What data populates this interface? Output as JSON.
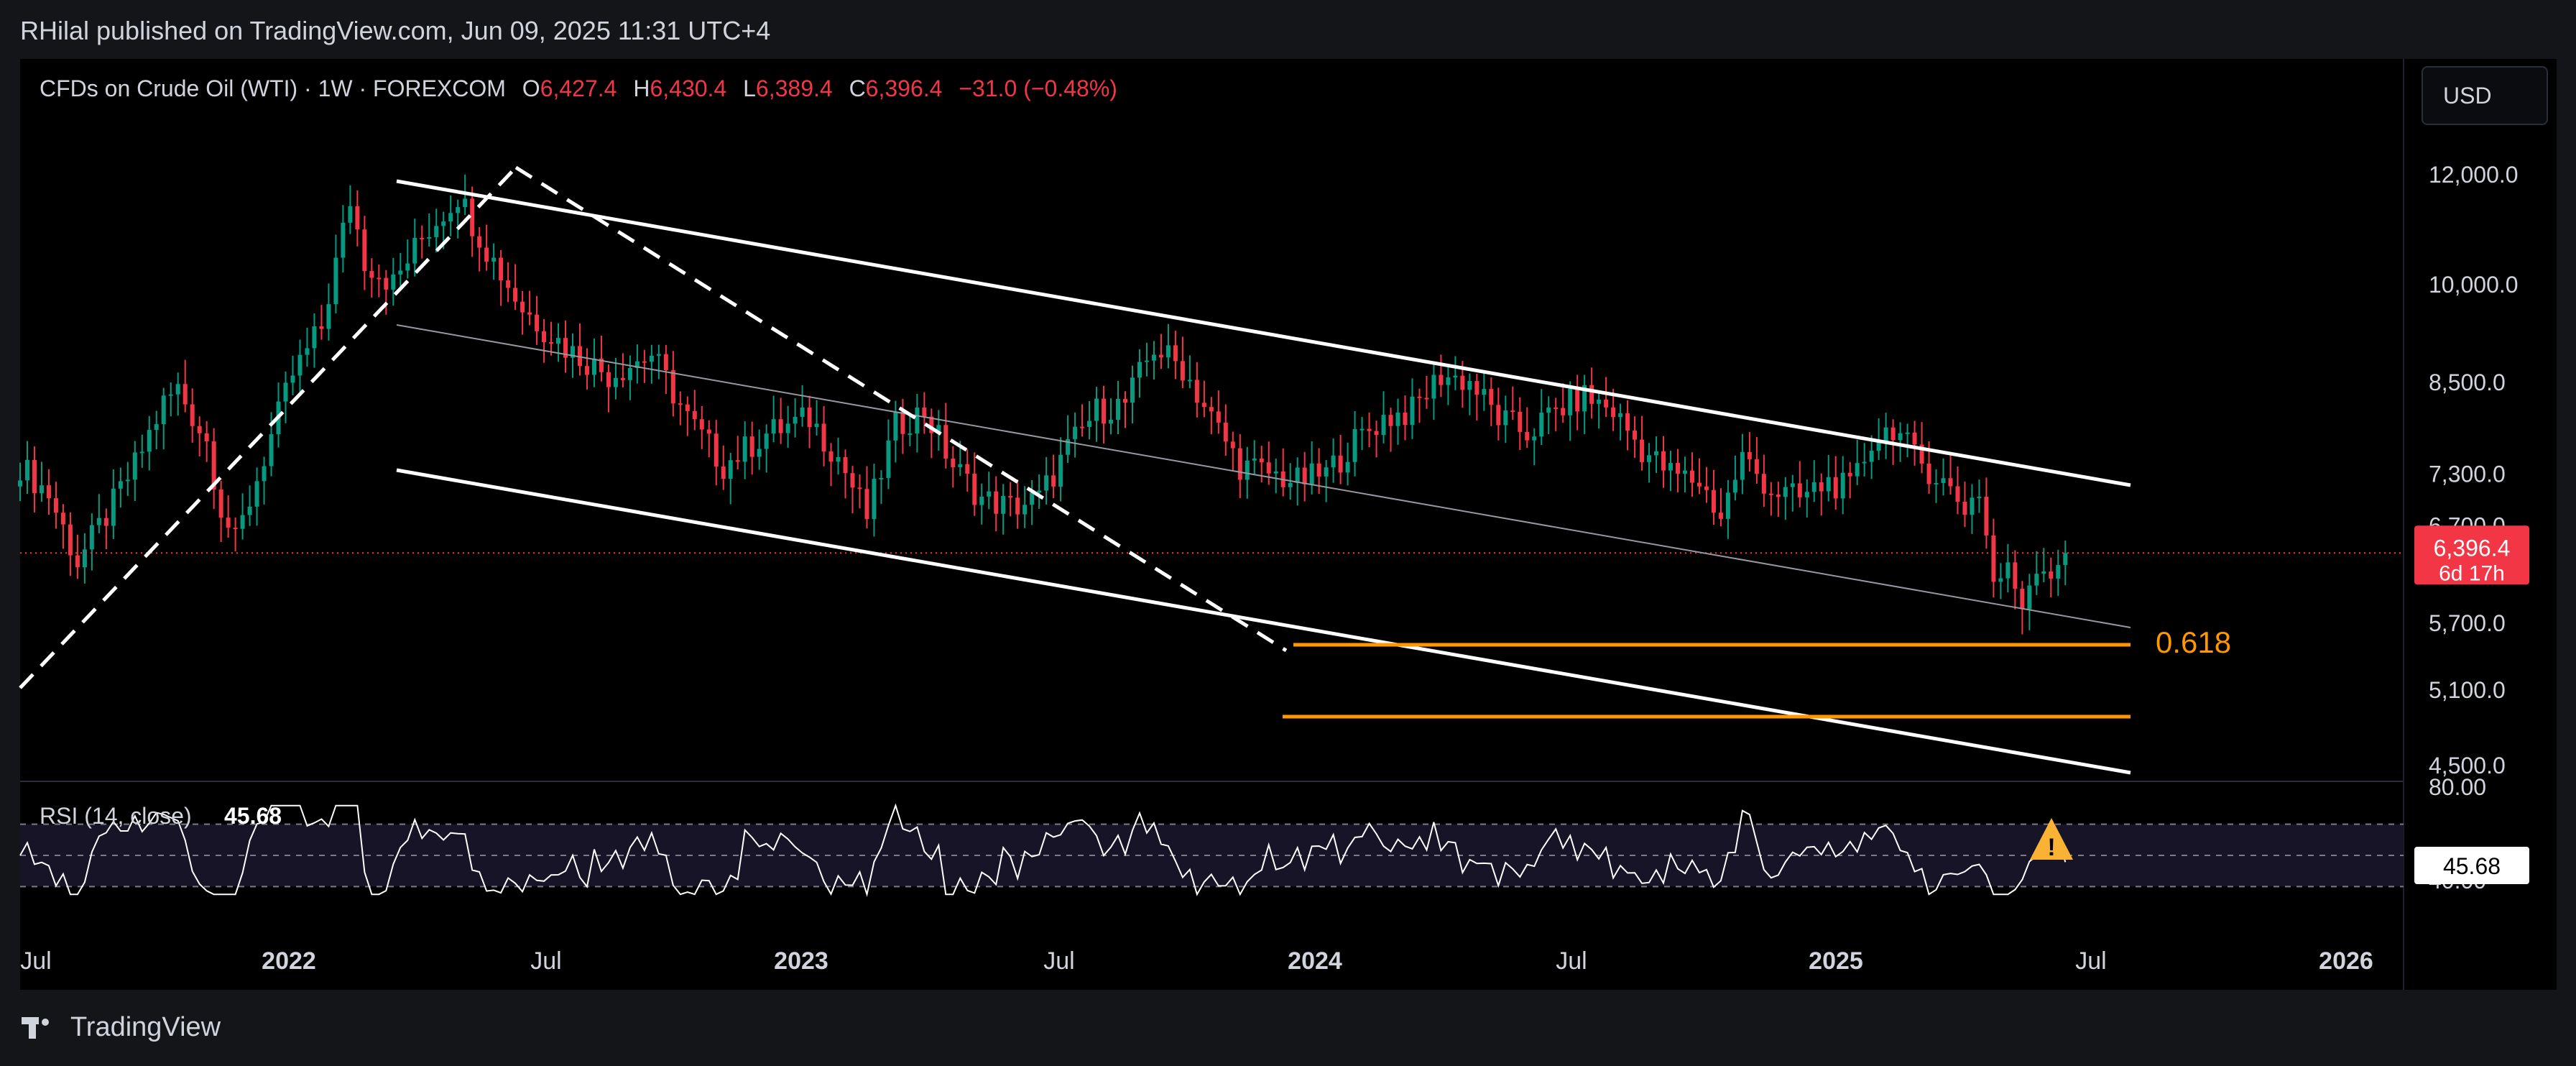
{
  "publisher": "RHilal published on TradingView.com, Jun 09, 2025 11:31 UTC+4",
  "symbol": {
    "name": "CFDs on Crude Oil (WTI) · 1W · FOREXCOM",
    "o_label": "O",
    "o_value": "6,427.4",
    "h_label": "H",
    "h_value": "6,430.4",
    "l_label": "L",
    "l_value": "6,389.4",
    "c_label": "C",
    "c_value": "6,396.4",
    "change": "−31.0 (−0.48%)"
  },
  "currency_button": "USD",
  "price_badge": {
    "price": "6,396.4",
    "countdown": "6d 17h"
  },
  "fib_label": "0.618",
  "rsi": {
    "label": "RSI (14, close)",
    "value": "45.68",
    "badge": "45.68"
  },
  "brand": "TradingView",
  "colors": {
    "up": "#089981",
    "down": "#f23645",
    "fib": "#ff9800",
    "bg": "#000000"
  },
  "chart_data": {
    "type": "candlestick",
    "scale": "log",
    "y_ticks": [
      "12,000.0",
      "10,000.0",
      "8,500.0",
      "7,300.0",
      "5,700.0",
      "5,100.0",
      "4,500.0"
    ],
    "y_tick_values": [
      12000,
      10000,
      8500,
      7300,
      5700,
      5100,
      4500
    ],
    "partial_tick": "6,700.0",
    "x_ticks": [
      "Jul",
      "2022",
      "Jul",
      "2023",
      "Jul",
      "2024",
      "Jul",
      "2025",
      "Jul",
      "2026"
    ],
    "rsi_ticks": [
      "80.00",
      "40.00"
    ],
    "last_price": 6396.4,
    "anchors": [
      {
        "t": 0,
        "p": 7400
      },
      {
        "t": 4,
        "p": 7050
      },
      {
        "t": 8,
        "p": 6300
      },
      {
        "t": 12,
        "p": 6800
      },
      {
        "t": 16,
        "p": 7400
      },
      {
        "t": 20,
        "p": 8200
      },
      {
        "t": 22,
        "p": 8400
      },
      {
        "t": 26,
        "p": 7700
      },
      {
        "t": 28,
        "p": 6900
      },
      {
        "t": 30,
        "p": 6500
      },
      {
        "t": 34,
        "p": 7500
      },
      {
        "t": 38,
        "p": 8600
      },
      {
        "t": 42,
        "p": 9300
      },
      {
        "t": 46,
        "p": 11500
      },
      {
        "t": 48,
        "p": 10400
      },
      {
        "t": 52,
        "p": 10000
      },
      {
        "t": 56,
        "p": 10800
      },
      {
        "t": 61,
        "p": 11600
      },
      {
        "t": 65,
        "p": 10600
      },
      {
        "t": 70,
        "p": 9600
      },
      {
        "t": 76,
        "p": 9000
      },
      {
        "t": 82,
        "p": 8600
      },
      {
        "t": 88,
        "p": 8900
      },
      {
        "t": 93,
        "p": 8000
      },
      {
        "t": 98,
        "p": 7400
      },
      {
        "t": 104,
        "p": 7800
      },
      {
        "t": 110,
        "p": 8000
      },
      {
        "t": 114,
        "p": 7500
      },
      {
        "t": 118,
        "p": 6800
      },
      {
        "t": 122,
        "p": 7900
      },
      {
        "t": 126,
        "p": 8100
      },
      {
        "t": 130,
        "p": 7400
      },
      {
        "t": 134,
        "p": 7000
      },
      {
        "t": 138,
        "p": 6900
      },
      {
        "t": 142,
        "p": 7000
      },
      {
        "t": 146,
        "p": 7600
      },
      {
        "t": 150,
        "p": 8100
      },
      {
        "t": 154,
        "p": 8200
      },
      {
        "t": 158,
        "p": 9000
      },
      {
        "t": 162,
        "p": 8700
      },
      {
        "t": 166,
        "p": 8000
      },
      {
        "t": 170,
        "p": 7400
      },
      {
        "t": 174,
        "p": 7300
      },
      {
        "t": 178,
        "p": 7200
      },
      {
        "t": 182,
        "p": 7300
      },
      {
        "t": 186,
        "p": 7700
      },
      {
        "t": 190,
        "p": 8000
      },
      {
        "t": 194,
        "p": 8100
      },
      {
        "t": 198,
        "p": 8600
      },
      {
        "t": 202,
        "p": 8500
      },
      {
        "t": 206,
        "p": 8000
      },
      {
        "t": 210,
        "p": 7800
      },
      {
        "t": 214,
        "p": 8100
      },
      {
        "t": 218,
        "p": 8300
      },
      {
        "t": 222,
        "p": 8100
      },
      {
        "t": 226,
        "p": 7600
      },
      {
        "t": 230,
        "p": 7300
      },
      {
        "t": 234,
        "p": 7200
      },
      {
        "t": 237,
        "p": 6800
      },
      {
        "t": 240,
        "p": 7500
      },
      {
        "t": 244,
        "p": 7100
      },
      {
        "t": 248,
        "p": 7000
      },
      {
        "t": 252,
        "p": 7200
      },
      {
        "t": 255,
        "p": 7100
      },
      {
        "t": 258,
        "p": 7700
      },
      {
        "t": 261,
        "p": 7900
      },
      {
        "t": 264,
        "p": 7500
      },
      {
        "t": 268,
        "p": 7200
      },
      {
        "t": 271,
        "p": 6900
      },
      {
        "t": 273,
        "p": 7100
      },
      {
        "t": 275,
        "p": 6100
      },
      {
        "t": 277,
        "p": 6200
      },
      {
        "t": 279,
        "p": 5900
      },
      {
        "t": 281,
        "p": 6300
      },
      {
        "t": 283,
        "p": 6200
      },
      {
        "t": 285,
        "p": 6430
      }
    ]
  }
}
